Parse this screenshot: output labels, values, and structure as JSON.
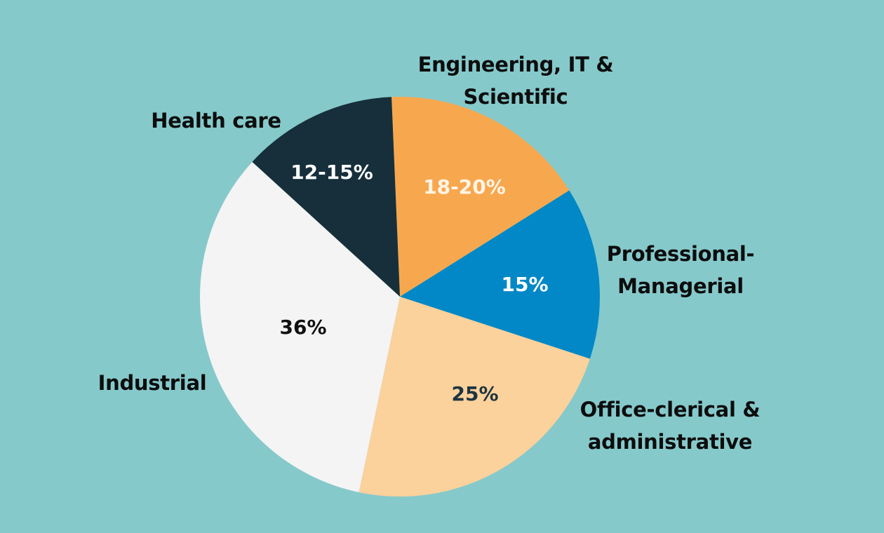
{
  "chart_data": {
    "type": "pie",
    "categories": [
      "Engineering, IT &\nScientific",
      "Professional-\nManagerial",
      "Office-clerical &\nadministrative",
      "Industrial",
      "Health care"
    ],
    "values": [
      18,
      15,
      25,
      36,
      13.5
    ],
    "value_labels": [
      "18-20%",
      "15%",
      "25%",
      "36%",
      "12-15%"
    ],
    "colors": [
      "#f7a84f",
      "#0288c6",
      "#fbd19c",
      "#f4f4f4",
      "#162f3b"
    ],
    "label_colors": [
      "#fff4e6",
      "#ffffff",
      "#1d3540",
      "#111111",
      "#ffffff"
    ]
  }
}
